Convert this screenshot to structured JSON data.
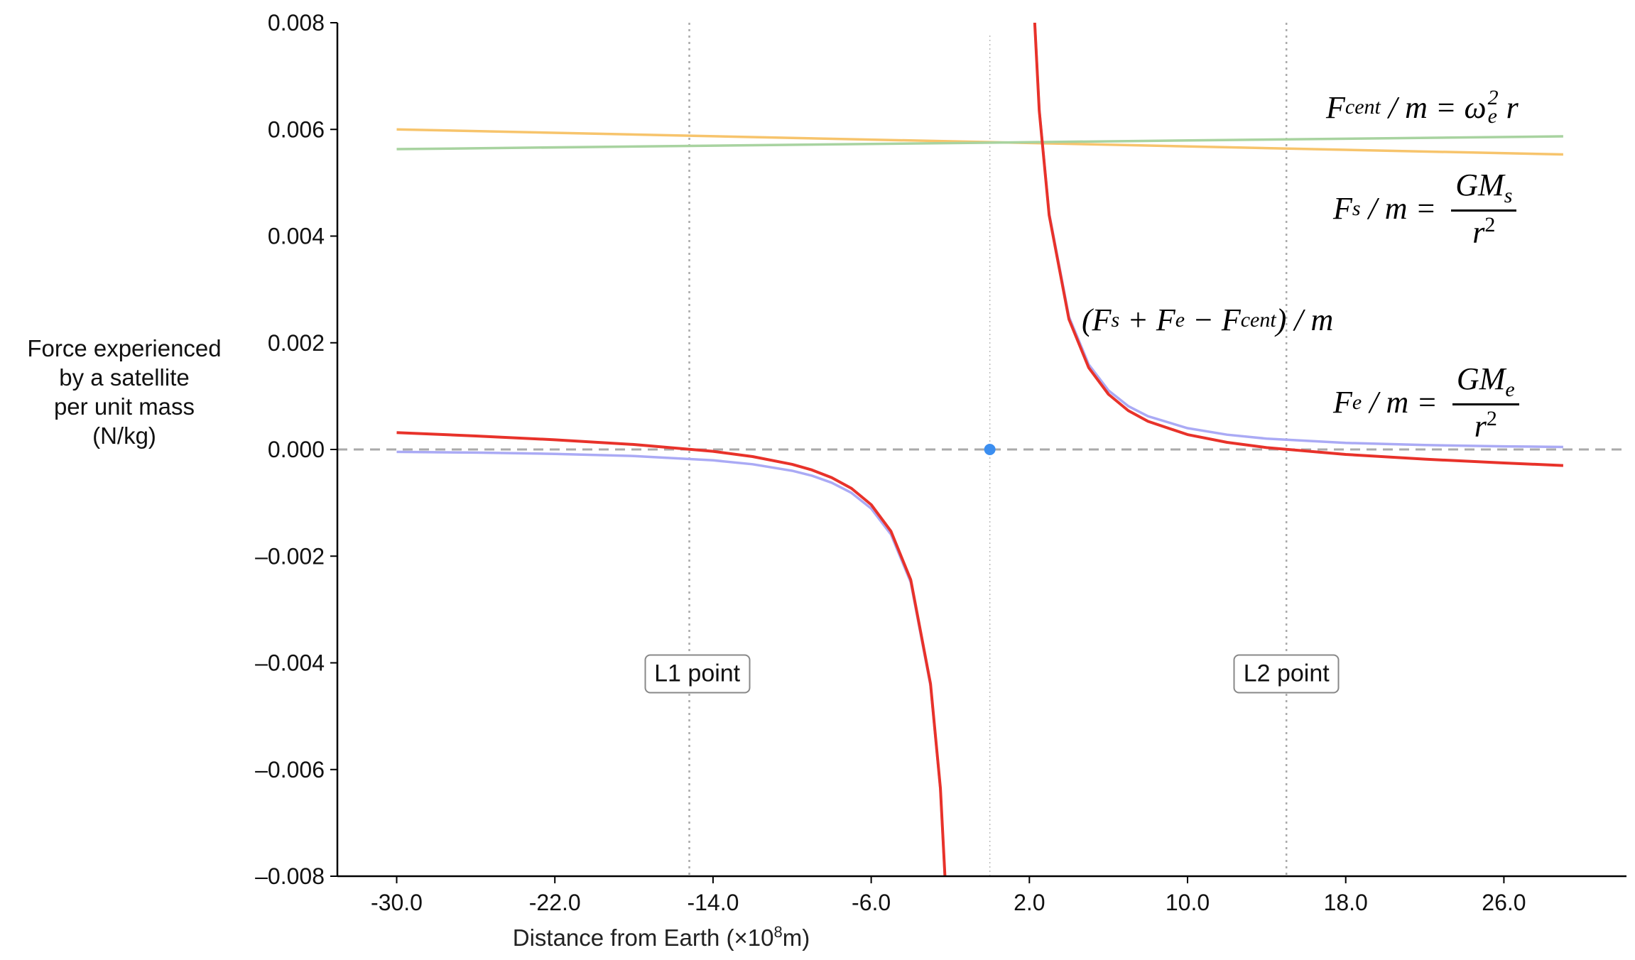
{
  "chart_data": {
    "type": "line",
    "xlabel": "Distance from Earth (×10⁸m)",
    "xlabel_parts": {
      "main": "Distance from Earth (×10",
      "sup": "8",
      "tail": "m)"
    },
    "ylabel_lines": [
      "Force experienced",
      "by a satellite",
      "per unit mass",
      "(N/kg)"
    ],
    "xlim": [
      -33,
      32.2
    ],
    "ylim": [
      -0.008,
      0.008
    ],
    "x_ticks": [
      "-30.0",
      "-22.0",
      "-14.0",
      "-6.0",
      "2.0",
      "10.0",
      "18.0",
      "26.0"
    ],
    "x_tick_values": [
      -30,
      -22,
      -14,
      -6,
      2,
      10,
      18,
      26
    ],
    "y_ticks": [
      "0.008",
      "0.006",
      "0.004",
      "0.002",
      "0.000",
      "–0.002",
      "–0.004",
      "–0.006",
      "–0.008"
    ],
    "y_tick_values": [
      0.008,
      0.006,
      0.004,
      0.002,
      0,
      -0.002,
      -0.004,
      -0.006,
      -0.008
    ],
    "grid": false,
    "series": [
      {
        "key": "sun",
        "color": "#f7c46c",
        "x": [
          -30,
          29
        ],
        "y": [
          0.006,
          0.00553
        ]
      },
      {
        "key": "centrifugal",
        "color": "#a8d3a0",
        "x": [
          -30,
          29
        ],
        "y": [
          0.00563,
          0.00587
        ]
      },
      {
        "key": "earth",
        "color": "#aaaaf5",
        "segments": [
          {
            "x": [
              -30,
              -26,
              -22,
              -18,
              -14,
              -12,
              -10,
              -9,
              -8,
              -7,
              -6,
              -5,
              -4,
              -3,
              -2.5,
              -2
            ],
            "y": [
              -4.43e-05,
              -5.9e-05,
              -8.24e-05,
              -0.000123,
              -0.000203,
              -0.000277,
              -0.000399,
              -0.000492,
              -0.000623,
              -0.000813,
              -0.001107,
              -0.001594,
              -0.002491,
              -0.004429,
              -0.006378,
              -0.009965
            ]
          },
          {
            "x": [
              2,
              2.5,
              3,
              4,
              5,
              6,
              7,
              8,
              10,
              12,
              14,
              18,
              22,
              26,
              29
            ],
            "y": [
              0.009965,
              0.006378,
              0.004429,
              0.002491,
              0.001594,
              0.001107,
              0.000813,
              0.000623,
              0.000399,
              0.000277,
              0.000203,
              0.000123,
              8.24e-05,
              5.9e-05,
              4.74e-05
            ]
          }
        ]
      },
      {
        "key": "net",
        "color": "#e8322a",
        "segments": [
          {
            "x": [
              -30,
              -26,
              -22,
              -18,
              -14,
              -12,
              -10,
              -9,
              -8,
              -7,
              -6,
              -5,
              -4,
              -3,
              -2.5,
              -2
            ],
            "y": [
              0.000316,
              0.000253,
              0.000182,
              9.3e-05,
              -3.5e-05,
              -0.000133,
              -0.000279,
              -0.000384,
              -0.000527,
              -0.000729,
              -0.001035,
              -0.001534,
              -0.002443,
              -0.004393,
              -0.006348,
              -0.009941
            ]
          },
          {
            "x": [
              2,
              2.5,
              3,
              4,
              5,
              6,
              7,
              8,
              10,
              12,
              14,
              18,
              22,
              26,
              29
            ],
            "y": [
              0.009941,
              0.006348,
              0.004393,
              0.002443,
              0.001534,
              0.001035,
              0.000729,
              0.000527,
              0.000279,
              0.000133,
              3.5e-05,
              -9.3e-05,
              -0.000182,
              -0.000253,
              -0.000301
            ]
          }
        ]
      }
    ],
    "reference_lines": {
      "zero_line_y": 0,
      "earth_x": 0,
      "l1_x": -15.2,
      "l2_x": 15.0
    },
    "earth_point": {
      "x": 0,
      "y": 0,
      "color": "#3b8ef0"
    },
    "annotations": {
      "l1": {
        "text": "L1 point",
        "x": -14.8,
        "y": -0.0042
      },
      "l2": {
        "text": "L2 point",
        "x": 15.0,
        "y": -0.0042
      },
      "fcent": {
        "F": "F",
        "sub": "cent",
        "mid": " / m = ω",
        "sub2": "e",
        "sup": "2",
        "tail": " r"
      },
      "fs": {
        "F": "F",
        "sub": "s",
        "mid": " / m = ",
        "num": "GM",
        "num_sub": "s",
        "den": "r",
        "den_sup": "2"
      },
      "fe": {
        "F": "F",
        "sub": "e",
        "mid": " / m = ",
        "num": "GM",
        "num_sub": "e",
        "den": "r",
        "den_sup": "2"
      },
      "net": {
        "open": "(F",
        "s": "s",
        "plus": " + F",
        "e": "e",
        "minus": " − F",
        "cent": "cent",
        "close": ") / m"
      }
    }
  }
}
